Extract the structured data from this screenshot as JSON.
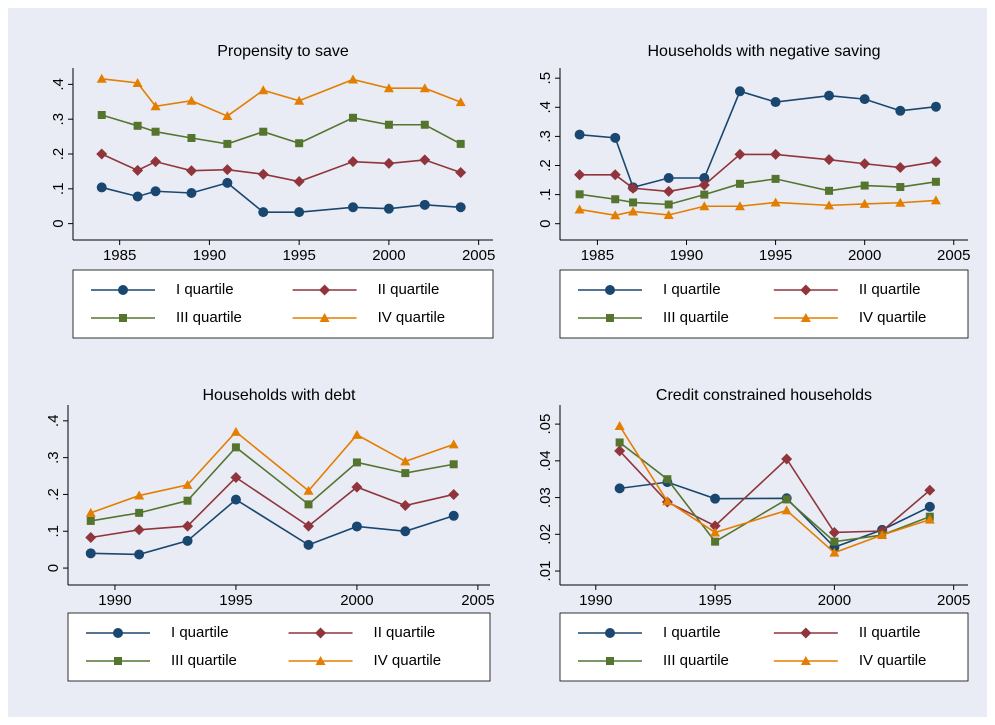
{
  "chart_data": [
    {
      "type": "line",
      "title": "Propensity to save",
      "legend": "bottom",
      "x": [
        1984,
        1986,
        1987,
        1989,
        1991,
        1993,
        1995,
        1998,
        2000,
        2002,
        2004
      ],
      "xlim": [
        1982.4,
        2005.8
      ],
      "xticks": [
        1985,
        1990,
        1995,
        2000,
        2005
      ],
      "ylim": [
        -0.047,
        0.447
      ],
      "yticks": [
        0,
        {
          "value": 0.1,
          "label": ".1"
        },
        {
          "value": 0.2,
          "label": ".2"
        },
        {
          "value": 0.3,
          "label": ".3"
        },
        {
          "value": 0.4,
          "label": ".4"
        }
      ],
      "series": [
        {
          "name": "I quartile",
          "color": "#1a476f",
          "values": [
            0.104,
            0.078,
            0.093,
            0.088,
            0.117,
            0.033,
            0.033,
            0.047,
            0.043,
            0.054,
            0.047
          ]
        },
        {
          "name": "II quartile",
          "color": "#90353b",
          "values": [
            0.2,
            0.153,
            0.178,
            0.152,
            0.155,
            0.142,
            0.121,
            0.178,
            0.173,
            0.183,
            0.147
          ]
        },
        {
          "name": "III quartile",
          "color": "#55752f",
          "values": [
            0.312,
            0.281,
            0.264,
            0.246,
            0.229,
            0.264,
            0.231,
            0.304,
            0.284,
            0.284,
            0.229
          ]
        },
        {
          "name": "IV quartile",
          "color": "#e37e00",
          "values": [
            0.416,
            0.404,
            0.337,
            0.353,
            0.309,
            0.383,
            0.353,
            0.414,
            0.389,
            0.389,
            0.349
          ]
        }
      ]
    },
    {
      "type": "line",
      "title": "Households with negative saving",
      "legend": "bottom",
      "x": [
        1984,
        1986,
        1987,
        1989,
        1991,
        1993,
        1995,
        1998,
        2000,
        2002,
        2004
      ],
      "xlim": [
        1982.9,
        2005.8
      ],
      "xticks": [
        1985,
        1990,
        1995,
        2000,
        2005
      ],
      "ylim": [
        -0.056,
        0.535
      ],
      "yticks": [
        0,
        {
          "value": 0.1,
          "label": ".1"
        },
        {
          "value": 0.2,
          "label": ".2"
        },
        {
          "value": 0.3,
          "label": ".3"
        },
        {
          "value": 0.4,
          "label": ".4"
        },
        {
          "value": 0.5,
          "label": ".5"
        }
      ],
      "series": [
        {
          "name": "I quartile",
          "color": "#1a476f",
          "values": [
            0.306,
            0.295,
            0.125,
            0.157,
            0.157,
            0.455,
            0.418,
            0.44,
            0.428,
            0.388,
            0.402
          ]
        },
        {
          "name": "II quartile",
          "color": "#90353b",
          "values": [
            0.168,
            0.168,
            0.122,
            0.111,
            0.133,
            0.238,
            0.238,
            0.22,
            0.206,
            0.193,
            0.213
          ]
        },
        {
          "name": "III quartile",
          "color": "#55752f",
          "values": [
            0.101,
            0.084,
            0.073,
            0.066,
            0.1,
            0.137,
            0.154,
            0.113,
            0.131,
            0.126,
            0.144
          ]
        },
        {
          "name": "IV quartile",
          "color": "#e37e00",
          "values": [
            0.049,
            0.029,
            0.042,
            0.03,
            0.06,
            0.06,
            0.073,
            0.063,
            0.068,
            0.072,
            0.08
          ]
        }
      ]
    },
    {
      "type": "line",
      "title": "Households with debt",
      "legend": "bottom",
      "x": [
        1989,
        1991,
        1993,
        1995,
        1998,
        2000,
        2002,
        2004
      ],
      "xlim": [
        1988.06,
        2005.5
      ],
      "xticks": [
        1990,
        1995,
        2000,
        2005
      ],
      "ylim": [
        -0.046,
        0.443
      ],
      "yticks": [
        0,
        {
          "value": 0.1,
          "label": ".1"
        },
        {
          "value": 0.2,
          "label": ".2"
        },
        {
          "value": 0.3,
          "label": ".3"
        },
        {
          "value": 0.4,
          "label": ".4"
        }
      ],
      "series": [
        {
          "name": "I quartile",
          "color": "#1a476f",
          "values": [
            0.04,
            0.037,
            0.074,
            0.186,
            0.063,
            0.113,
            0.1,
            0.142
          ]
        },
        {
          "name": "II quartile",
          "color": "#90353b",
          "values": [
            0.083,
            0.104,
            0.114,
            0.246,
            0.114,
            0.22,
            0.17,
            0.2
          ]
        },
        {
          "name": "III quartile",
          "color": "#55752f",
          "values": [
            0.128,
            0.15,
            0.183,
            0.328,
            0.173,
            0.287,
            0.258,
            0.282
          ]
        },
        {
          "name": "IV quartile",
          "color": "#e37e00",
          "values": [
            0.15,
            0.197,
            0.226,
            0.37,
            0.21,
            0.362,
            0.29,
            0.336
          ]
        }
      ]
    },
    {
      "type": "line",
      "title": "Credit constrained households",
      "legend": "bottom",
      "x": [
        1991,
        1993,
        1995,
        1998,
        2000,
        2002,
        2004
      ],
      "xlim": [
        1988.5,
        2005.6
      ],
      "xticks": [
        1990,
        1995,
        2000,
        2005
      ],
      "ylim": [
        0.0062,
        0.0552
      ],
      "yticks": [
        {
          "value": 0.01,
          "label": ".01"
        },
        {
          "value": 0.02,
          "label": ".02"
        },
        {
          "value": 0.03,
          "label": ".03"
        },
        {
          "value": 0.04,
          "label": ".04"
        },
        {
          "value": 0.05,
          "label": ".05"
        }
      ],
      "series": [
        {
          "name": "I quartile",
          "color": "#1a476f",
          "values": [
            0.0325,
            0.0342,
            0.0297,
            0.0298,
            0.0165,
            0.0212,
            0.0275
          ]
        },
        {
          "name": "II quartile",
          "color": "#90353b",
          "values": [
            0.0427,
            0.0288,
            0.0223,
            0.0405,
            0.0205,
            0.0209,
            0.032
          ]
        },
        {
          "name": "III quartile",
          "color": "#55752f",
          "values": [
            0.045,
            0.035,
            0.018,
            0.0295,
            0.018,
            0.0198,
            0.0248
          ]
        },
        {
          "name": "IV quartile",
          "color": "#e37e00",
          "values": [
            0.0495,
            0.029,
            0.0205,
            0.0265,
            0.015,
            0.0198,
            0.024
          ]
        }
      ]
    }
  ]
}
